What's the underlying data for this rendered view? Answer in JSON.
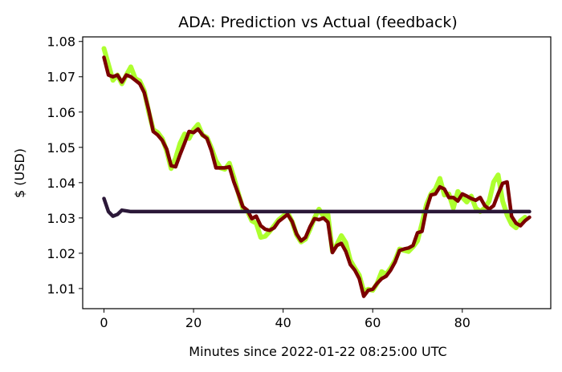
{
  "chart_data": {
    "type": "line",
    "title": "ADA: Prediction vs Actual (feedback)",
    "xlabel": "Minutes since 2022-01-22 08:25:00 UTC",
    "ylabel": "$ (USD)",
    "xlim": [
      -4.75,
      99.75
    ],
    "ylim": [
      1.0043,
      1.0813
    ],
    "xticks": [
      0,
      20,
      40,
      60,
      80
    ],
    "yticks": [
      1.01,
      1.02,
      1.03,
      1.04,
      1.05,
      1.06,
      1.07,
      1.08
    ],
    "grid": false,
    "series": [
      {
        "color": "#adff2f",
        "values": [
          1.078,
          1.0735,
          1.069,
          1.0705,
          1.068,
          1.0705,
          1.0728,
          1.0695,
          1.0688,
          1.066,
          1.06,
          1.055,
          1.0542,
          1.0525,
          1.049,
          1.044,
          1.047,
          1.0512,
          1.0538,
          1.0525,
          1.055,
          1.0565,
          1.0535,
          1.0528,
          1.0498,
          1.0462,
          1.0442,
          1.0438,
          1.0455,
          1.0415,
          1.037,
          1.0328,
          1.032,
          1.0292,
          1.0285,
          1.0245,
          1.0248,
          1.0262,
          1.0278,
          1.0295,
          1.0305,
          1.0315,
          1.029,
          1.0252,
          1.0232,
          1.024,
          1.0268,
          1.03,
          1.0325,
          1.0305,
          1.031,
          1.0205,
          1.0225,
          1.025,
          1.023,
          1.018,
          1.0158,
          1.0138,
          1.0092,
          1.0098,
          1.0095,
          1.0115,
          1.0148,
          1.014,
          1.0158,
          1.018,
          1.0212,
          1.0208,
          1.0205,
          1.0218,
          1.0235,
          1.0285,
          1.0338,
          1.0368,
          1.0382,
          1.0412,
          1.0365,
          1.0368,
          1.0328,
          1.0375,
          1.0358,
          1.0345,
          1.0362,
          1.0328,
          1.0318,
          1.0328,
          1.0348,
          1.0402,
          1.0422,
          1.0348,
          1.0308,
          1.0282,
          1.0272,
          1.0292,
          1.0302
        ]
      },
      {
        "color": "#7b0000",
        "values": [
          1.0755,
          1.0705,
          1.07,
          1.0705,
          1.0685,
          1.0705,
          1.07,
          1.069,
          1.068,
          1.0655,
          1.0605,
          1.0545,
          1.0535,
          1.052,
          1.0495,
          1.0448,
          1.0445,
          1.048,
          1.0512,
          1.0545,
          1.0542,
          1.0552,
          1.0535,
          1.0525,
          1.049,
          1.0442,
          1.0442,
          1.0442,
          1.0445,
          1.0402,
          1.0368,
          1.0332,
          1.0322,
          1.0298,
          1.0305,
          1.0278,
          1.0268,
          1.0265,
          1.0272,
          1.029,
          1.03,
          1.031,
          1.029,
          1.0255,
          1.0235,
          1.0245,
          1.0275,
          1.0298,
          1.0295,
          1.03,
          1.0288,
          1.0202,
          1.0222,
          1.0228,
          1.0205,
          1.0168,
          1.0152,
          1.0128,
          1.0078,
          1.0095,
          1.0098,
          1.0115,
          1.0128,
          1.0135,
          1.0152,
          1.0175,
          1.0208,
          1.0212,
          1.0215,
          1.0222,
          1.0258,
          1.0262,
          1.0325,
          1.0365,
          1.0368,
          1.0388,
          1.0382,
          1.0358,
          1.0358,
          1.0348,
          1.0368,
          1.0362,
          1.0355,
          1.035,
          1.0358,
          1.0335,
          1.0325,
          1.0335,
          1.0368,
          1.0398,
          1.0402,
          1.0305,
          1.0285,
          1.0278,
          1.0292,
          1.0302
        ]
      },
      {
        "color": "#2b1838",
        "values": [
          1.0355,
          1.0318,
          1.0305,
          1.031,
          1.0322,
          1.032,
          1.0318,
          1.0318,
          1.0318,
          1.0318,
          1.0318,
          1.0318,
          1.0318,
          1.0318,
          1.0318,
          1.0318,
          1.0318,
          1.0318,
          1.0318,
          1.0318,
          1.0318,
          1.0318,
          1.0318,
          1.0318,
          1.0318,
          1.0318,
          1.0318,
          1.0318,
          1.0318,
          1.0318,
          1.0318,
          1.0318,
          1.0318,
          1.0318,
          1.0318,
          1.0318,
          1.0318,
          1.0318,
          1.0318,
          1.0318,
          1.0318,
          1.0318,
          1.0318,
          1.0318,
          1.0318,
          1.0318,
          1.0318,
          1.0318,
          1.0318,
          1.0318,
          1.0318,
          1.0318,
          1.0318,
          1.0318,
          1.0318,
          1.0318,
          1.0318,
          1.0318,
          1.0318,
          1.0318,
          1.0318,
          1.0318,
          1.0318,
          1.0318,
          1.0318,
          1.0318,
          1.0318,
          1.0318,
          1.0318,
          1.0318,
          1.0318,
          1.0318,
          1.0318,
          1.0318,
          1.0318,
          1.0318,
          1.0318,
          1.0318,
          1.0318,
          1.0318,
          1.0318,
          1.0318,
          1.0318,
          1.0318,
          1.0318,
          1.0318,
          1.0318,
          1.0318,
          1.0318,
          1.0318,
          1.0318,
          1.0318,
          1.0318,
          1.0318,
          1.0318,
          1.0318
        ]
      }
    ]
  }
}
